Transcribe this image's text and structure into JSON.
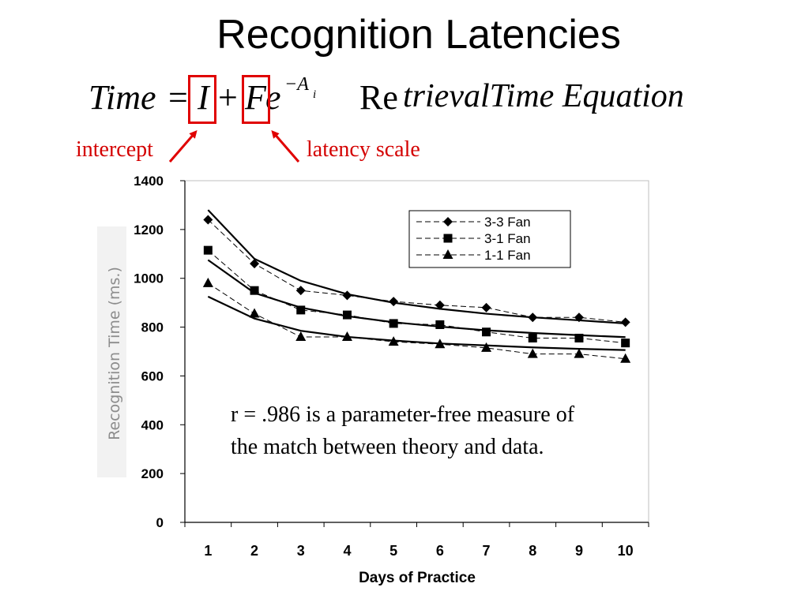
{
  "slide": {
    "title": "Recognition Latencies",
    "equation": {
      "lhs": "Time",
      "equals": "=",
      "intercept_symbol": "I",
      "plus": "+",
      "scale_symbol": "F",
      "base": "e",
      "exponent": "−A",
      "exponent_subscript": "i",
      "name_upright": "Re",
      "name_italic": "trievalTime Equation"
    },
    "callouts": {
      "intercept": "intercept",
      "latency_scale": "latency scale"
    },
    "annotation": "r = .986 is a parameter-free measure of the match between theory and data.",
    "accent_color": "#e00000"
  },
  "chart_data": {
    "type": "line",
    "xlabel": "Days of Practice",
    "ylabel": "Recognition Time (ms.)",
    "x": [
      1,
      2,
      3,
      4,
      5,
      6,
      7,
      8,
      9,
      10
    ],
    "xlim": [
      0.5,
      10.5
    ],
    "ylim": [
      0,
      1400
    ],
    "yticks": [
      0,
      200,
      400,
      600,
      800,
      1000,
      1200,
      1400
    ],
    "grid": false,
    "legend_position": "top-right",
    "series": [
      {
        "name": "3-3 Fan",
        "marker": "diamond",
        "style": "dashed",
        "values": [
          1240,
          1060,
          950,
          930,
          905,
          890,
          880,
          840,
          840,
          820
        ]
      },
      {
        "name": "3-1 Fan",
        "marker": "square",
        "style": "dashed",
        "values": [
          1115,
          950,
          870,
          850,
          815,
          810,
          780,
          755,
          755,
          735
        ]
      },
      {
        "name": "1-1 Fan",
        "marker": "triangle",
        "style": "dashed",
        "values": [
          980,
          855,
          760,
          760,
          740,
          730,
          715,
          690,
          690,
          670
        ]
      }
    ],
    "fits": [
      {
        "values": [
          1280,
          1080,
          990,
          935,
          900,
          875,
          855,
          840,
          828,
          815
        ]
      },
      {
        "values": [
          1075,
          940,
          880,
          845,
          820,
          802,
          787,
          776,
          767,
          759
        ]
      },
      {
        "values": [
          925,
          835,
          785,
          760,
          745,
          733,
          725,
          717,
          711,
          706
        ]
      }
    ]
  }
}
